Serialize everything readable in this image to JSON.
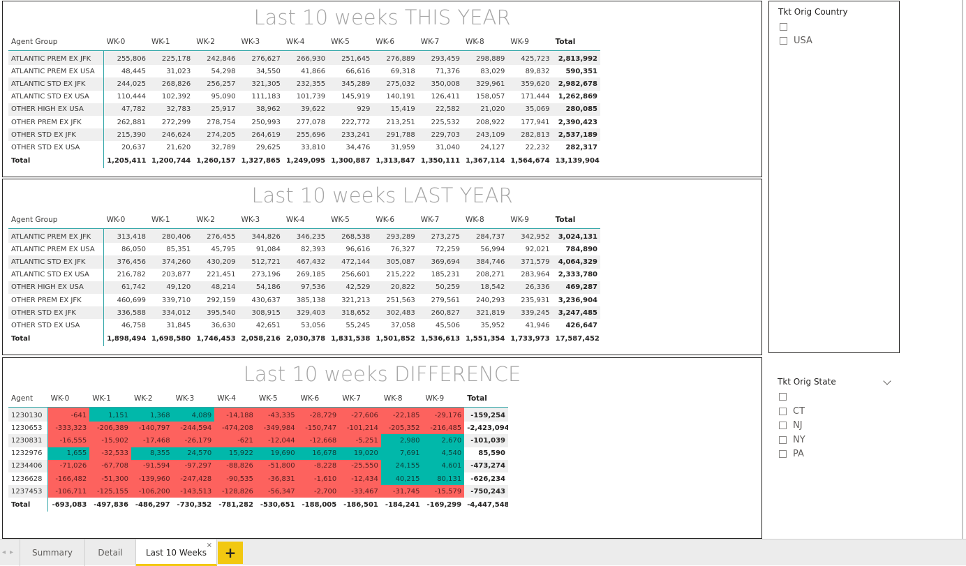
{
  "this_year": {
    "title": "Last 10 weeks THIS YEAR",
    "headers": [
      "Agent Group",
      "WK-0",
      "WK-1",
      "WK-2",
      "WK-3",
      "WK-4",
      "WK-5",
      "WK-6",
      "WK-7",
      "WK-8",
      "WK-9",
      "Total"
    ],
    "rows": [
      [
        "ATLANTIC PREM EX JFK",
        "255,806",
        "225,178",
        "242,846",
        "276,627",
        "266,930",
        "251,645",
        "276,889",
        "293,459",
        "298,889",
        "425,723",
        "2,813,992"
      ],
      [
        "ATLANTIC PREM EX USA",
        "48,445",
        "31,023",
        "54,298",
        "34,550",
        "41,866",
        "66,616",
        "69,318",
        "71,376",
        "83,029",
        "89,832",
        "590,351"
      ],
      [
        "ATLANTIC STD EX JFK",
        "244,025",
        "268,826",
        "256,257",
        "321,305",
        "232,355",
        "345,289",
        "275,032",
        "350,008",
        "329,961",
        "359,620",
        "2,982,678"
      ],
      [
        "ATLANTIC STD EX USA",
        "110,444",
        "102,392",
        "95,090",
        "111,183",
        "101,739",
        "145,919",
        "140,191",
        "126,411",
        "158,057",
        "171,444",
        "1,262,869"
      ],
      [
        "OTHER HIGH EX USA",
        "47,782",
        "32,783",
        "25,917",
        "38,962",
        "39,622",
        "929",
        "15,419",
        "22,582",
        "21,020",
        "35,069",
        "280,085"
      ],
      [
        "OTHER PREM EX JFK",
        "262,881",
        "272,299",
        "278,754",
        "250,993",
        "277,078",
        "222,772",
        "213,251",
        "225,532",
        "208,922",
        "177,941",
        "2,390,423"
      ],
      [
        "OTHER STD EX JFK",
        "215,390",
        "246,624",
        "274,205",
        "264,619",
        "255,696",
        "233,241",
        "291,788",
        "229,703",
        "243,109",
        "282,813",
        "2,537,189"
      ],
      [
        "OTHER STD EX USA",
        "20,637",
        "21,620",
        "32,789",
        "29,625",
        "33,810",
        "34,476",
        "31,959",
        "31,040",
        "24,127",
        "22,232",
        "282,317"
      ]
    ],
    "total": [
      "Total",
      "1,205,411",
      "1,200,744",
      "1,260,157",
      "1,327,865",
      "1,249,095",
      "1,300,887",
      "1,313,847",
      "1,350,111",
      "1,367,114",
      "1,564,674",
      "13,139,904"
    ]
  },
  "last_year": {
    "title": "Last 10 weeks LAST YEAR",
    "headers": [
      "Agent Group",
      "WK-0",
      "WK-1",
      "WK-2",
      "WK-3",
      "WK-4",
      "WK-5",
      "WK-6",
      "WK-7",
      "WK-8",
      "WK-9",
      "Total"
    ],
    "rows": [
      [
        "ATLANTIC PREM EX JFK",
        "313,418",
        "280,406",
        "276,455",
        "344,826",
        "346,235",
        "268,538",
        "293,289",
        "273,275",
        "284,737",
        "342,952",
        "3,024,131"
      ],
      [
        "ATLANTIC PREM EX USA",
        "86,050",
        "85,351",
        "45,795",
        "91,084",
        "82,393",
        "96,616",
        "76,327",
        "72,259",
        "56,994",
        "92,021",
        "784,890"
      ],
      [
        "ATLANTIC STD EX JFK",
        "376,456",
        "374,260",
        "430,209",
        "512,721",
        "467,432",
        "472,144",
        "305,087",
        "369,694",
        "384,746",
        "371,579",
        "4,064,329"
      ],
      [
        "ATLANTIC STD EX USA",
        "216,782",
        "203,877",
        "221,451",
        "273,196",
        "269,185",
        "256,601",
        "215,222",
        "185,231",
        "208,271",
        "283,964",
        "2,333,780"
      ],
      [
        "OTHER HIGH EX USA",
        "61,742",
        "49,120",
        "48,214",
        "54,186",
        "97,536",
        "42,529",
        "20,822",
        "50,259",
        "18,542",
        "26,336",
        "469,287"
      ],
      [
        "OTHER PREM EX JFK",
        "460,699",
        "339,710",
        "292,159",
        "430,637",
        "385,138",
        "321,213",
        "251,563",
        "279,561",
        "240,293",
        "235,931",
        "3,236,904"
      ],
      [
        "OTHER STD EX JFK",
        "336,588",
        "334,012",
        "395,540",
        "308,915",
        "329,403",
        "318,652",
        "302,483",
        "260,827",
        "321,819",
        "339,245",
        "3,247,485"
      ],
      [
        "OTHER STD EX USA",
        "46,758",
        "31,845",
        "36,630",
        "42,651",
        "53,056",
        "55,245",
        "37,058",
        "45,506",
        "35,952",
        "41,946",
        "426,647"
      ]
    ],
    "total": [
      "Total",
      "1,898,494",
      "1,698,580",
      "1,746,453",
      "2,058,216",
      "2,030,378",
      "1,831,538",
      "1,501,852",
      "1,536,613",
      "1,551,354",
      "1,733,973",
      "17,587,452"
    ]
  },
  "difference": {
    "title": "Last 10 weeks DIFFERENCE",
    "headers": [
      "Agent",
      "WK-0",
      "WK-1",
      "WK-2",
      "WK-3",
      "WK-4",
      "WK-5",
      "WK-6",
      "WK-7",
      "WK-8",
      "WK-9",
      "Total"
    ],
    "rows": [
      [
        "1230130",
        "-641",
        "1,151",
        "1,368",
        "4,089",
        "-14,188",
        "-43,335",
        "-28,729",
        "-27,606",
        "-22,185",
        "-29,176",
        "-159,254"
      ],
      [
        "1230653",
        "-333,323",
        "-206,389",
        "-140,797",
        "-244,594",
        "-474,208",
        "-349,984",
        "-150,747",
        "-101,214",
        "-205,352",
        "-216,485",
        "-2,423,094"
      ],
      [
        "1230831",
        "-16,555",
        "-15,902",
        "-17,468",
        "-26,179",
        "-621",
        "-12,044",
        "-12,668",
        "-5,251",
        "2,980",
        "2,670",
        "-101,039"
      ],
      [
        "1232976",
        "1,655",
        "-32,533",
        "8,355",
        "24,570",
        "15,922",
        "19,690",
        "16,678",
        "19,020",
        "7,691",
        "4,540",
        "85,590"
      ],
      [
        "1234406",
        "-71,026",
        "-67,708",
        "-91,594",
        "-97,297",
        "-88,826",
        "-51,800",
        "-8,228",
        "-25,550",
        "24,155",
        "4,601",
        "-473,274"
      ],
      [
        "1236628",
        "-166,482",
        "-51,300",
        "-139,960",
        "-247,428",
        "-90,535",
        "-36,831",
        "-1,610",
        "-12,434",
        "40,215",
        "80,131",
        "-626,234"
      ],
      [
        "1237453",
        "-106,711",
        "-125,155",
        "-106,200",
        "-143,513",
        "-128,826",
        "-56,347",
        "-2,700",
        "-33,467",
        "-31,745",
        "-15,579",
        "-750,243"
      ]
    ],
    "total": [
      "Total",
      "-693,083",
      "-497,836",
      "-486,297",
      "-730,352",
      "-781,282",
      "-530,651",
      "-188,005",
      "-186,501",
      "-184,241",
      "-169,299",
      "-4,447,548"
    ],
    "colors": {
      "negative": "#fd625e",
      "positive": "#01b8aa"
    }
  },
  "country_slicer": {
    "title": "Tkt Orig Country",
    "items": [
      "",
      "USA"
    ]
  },
  "state_slicer": {
    "title": "Tkt Orig State",
    "items": [
      "",
      "CT",
      "NJ",
      "NY",
      "PA"
    ]
  },
  "tabs": {
    "items": [
      "Summary",
      "Detail",
      "Last 10 Weeks"
    ],
    "active_index": 2,
    "close_glyph": "×",
    "add_glyph": "+"
  },
  "colors": {
    "accent": "#35a7a9",
    "tab_active": "#f2c811"
  }
}
